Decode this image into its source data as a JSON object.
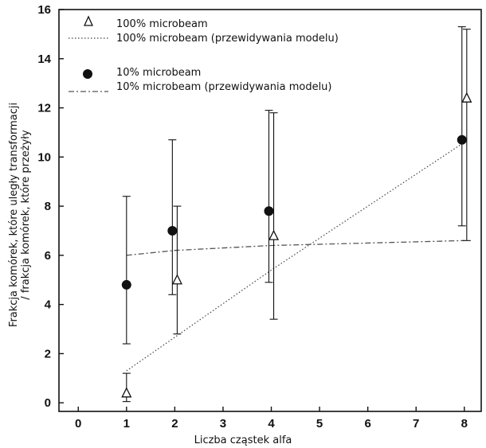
{
  "chart_data": {
    "type": "scatter",
    "title": "",
    "xlabel": "Liczba cząstek alfa",
    "ylabel_line1": "Frakcja komórek, które uległy transformacji",
    "ylabel_line2": "/ frakcja komórek, które przeżyły",
    "xlim": [
      -0.4,
      8.35
    ],
    "ylim": [
      -0.35,
      16
    ],
    "x_ticks": [
      0,
      1,
      2,
      3,
      4,
      5,
      6,
      7,
      8
    ],
    "y_ticks": [
      0,
      2,
      4,
      6,
      8,
      10,
      12,
      14,
      16
    ],
    "grid": false,
    "legend_position": "top-left",
    "series": [
      {
        "name": "100% microbeam",
        "marker": "open-triangle",
        "x": [
          1,
          2.05,
          4.05,
          8.05
        ],
        "y": [
          0.4,
          5.0,
          6.8,
          12.4
        ],
        "err_low": [
          0.05,
          2.8,
          3.4,
          6.6
        ],
        "err_high": [
          1.2,
          8.0,
          11.8,
          15.2
        ]
      },
      {
        "name": "100% microbeam (przewidywania modelu)",
        "style": "dotted-line",
        "x": [
          1,
          4,
          8
        ],
        "y": [
          1.3,
          5.4,
          10.6
        ]
      },
      {
        "name": "10% microbeam",
        "marker": "filled-circle",
        "x": [
          1,
          1.95,
          3.95,
          7.95
        ],
        "y": [
          4.8,
          7.0,
          7.8,
          10.7
        ],
        "err_low": [
          2.4,
          4.4,
          4.9,
          7.2
        ],
        "err_high": [
          8.4,
          10.7,
          11.9,
          15.3
        ]
      },
      {
        "name": "10% microbeam (przewidywania modelu)",
        "style": "dash-dot-line",
        "x": [
          1,
          2,
          4,
          8
        ],
        "y": [
          6.0,
          6.2,
          6.4,
          6.6
        ]
      }
    ]
  }
}
